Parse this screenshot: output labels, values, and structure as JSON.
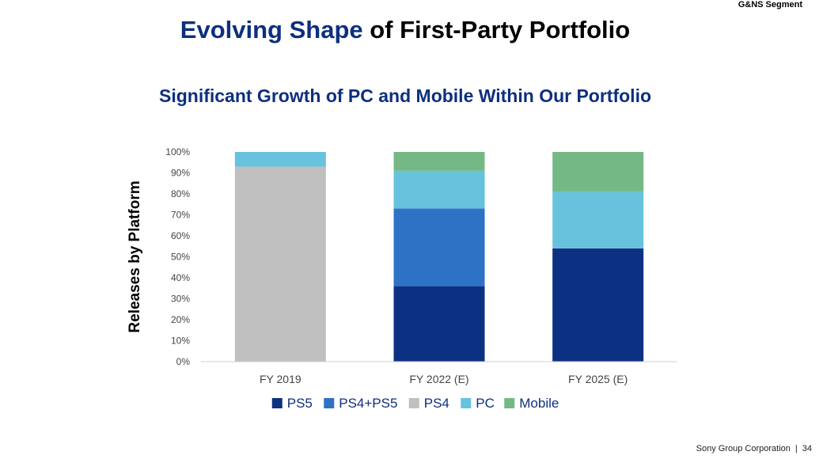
{
  "header": {
    "segment_tag": "G&NS Segment",
    "title_accent": "Evolving Shape",
    "title_rest": " of First-Party Portfolio",
    "subtitle": "Significant Growth of PC and Mobile Within Our Portfolio"
  },
  "chart_data": {
    "type": "bar",
    "stacked": true,
    "ylabel": "Releases by Platform",
    "xlabel": "",
    "ylim": [
      0,
      100
    ],
    "yticks": [
      0,
      10,
      20,
      30,
      40,
      50,
      60,
      70,
      80,
      90,
      100
    ],
    "ytick_suffix": "%",
    "categories": [
      "FY 2019",
      "FY 2022 (E)",
      "FY 2025 (E)"
    ],
    "series": [
      {
        "name": "PS5",
        "color": "#0d3182",
        "values": [
          0,
          36,
          54
        ]
      },
      {
        "name": "PS4+PS5",
        "color": "#2e72c6",
        "values": [
          0,
          37,
          0
        ]
      },
      {
        "name": "PS4",
        "color": "#c0c0c0",
        "values": [
          93,
          0,
          0
        ]
      },
      {
        "name": "PC",
        "color": "#67c2dd",
        "values": [
          7,
          18,
          27
        ]
      },
      {
        "name": "Mobile",
        "color": "#74b985",
        "values": [
          0,
          9,
          19
        ]
      }
    ],
    "legend_position": "bottom",
    "grid": false
  },
  "footer": {
    "company": "Sony Group Corporation",
    "page_number": "34"
  }
}
